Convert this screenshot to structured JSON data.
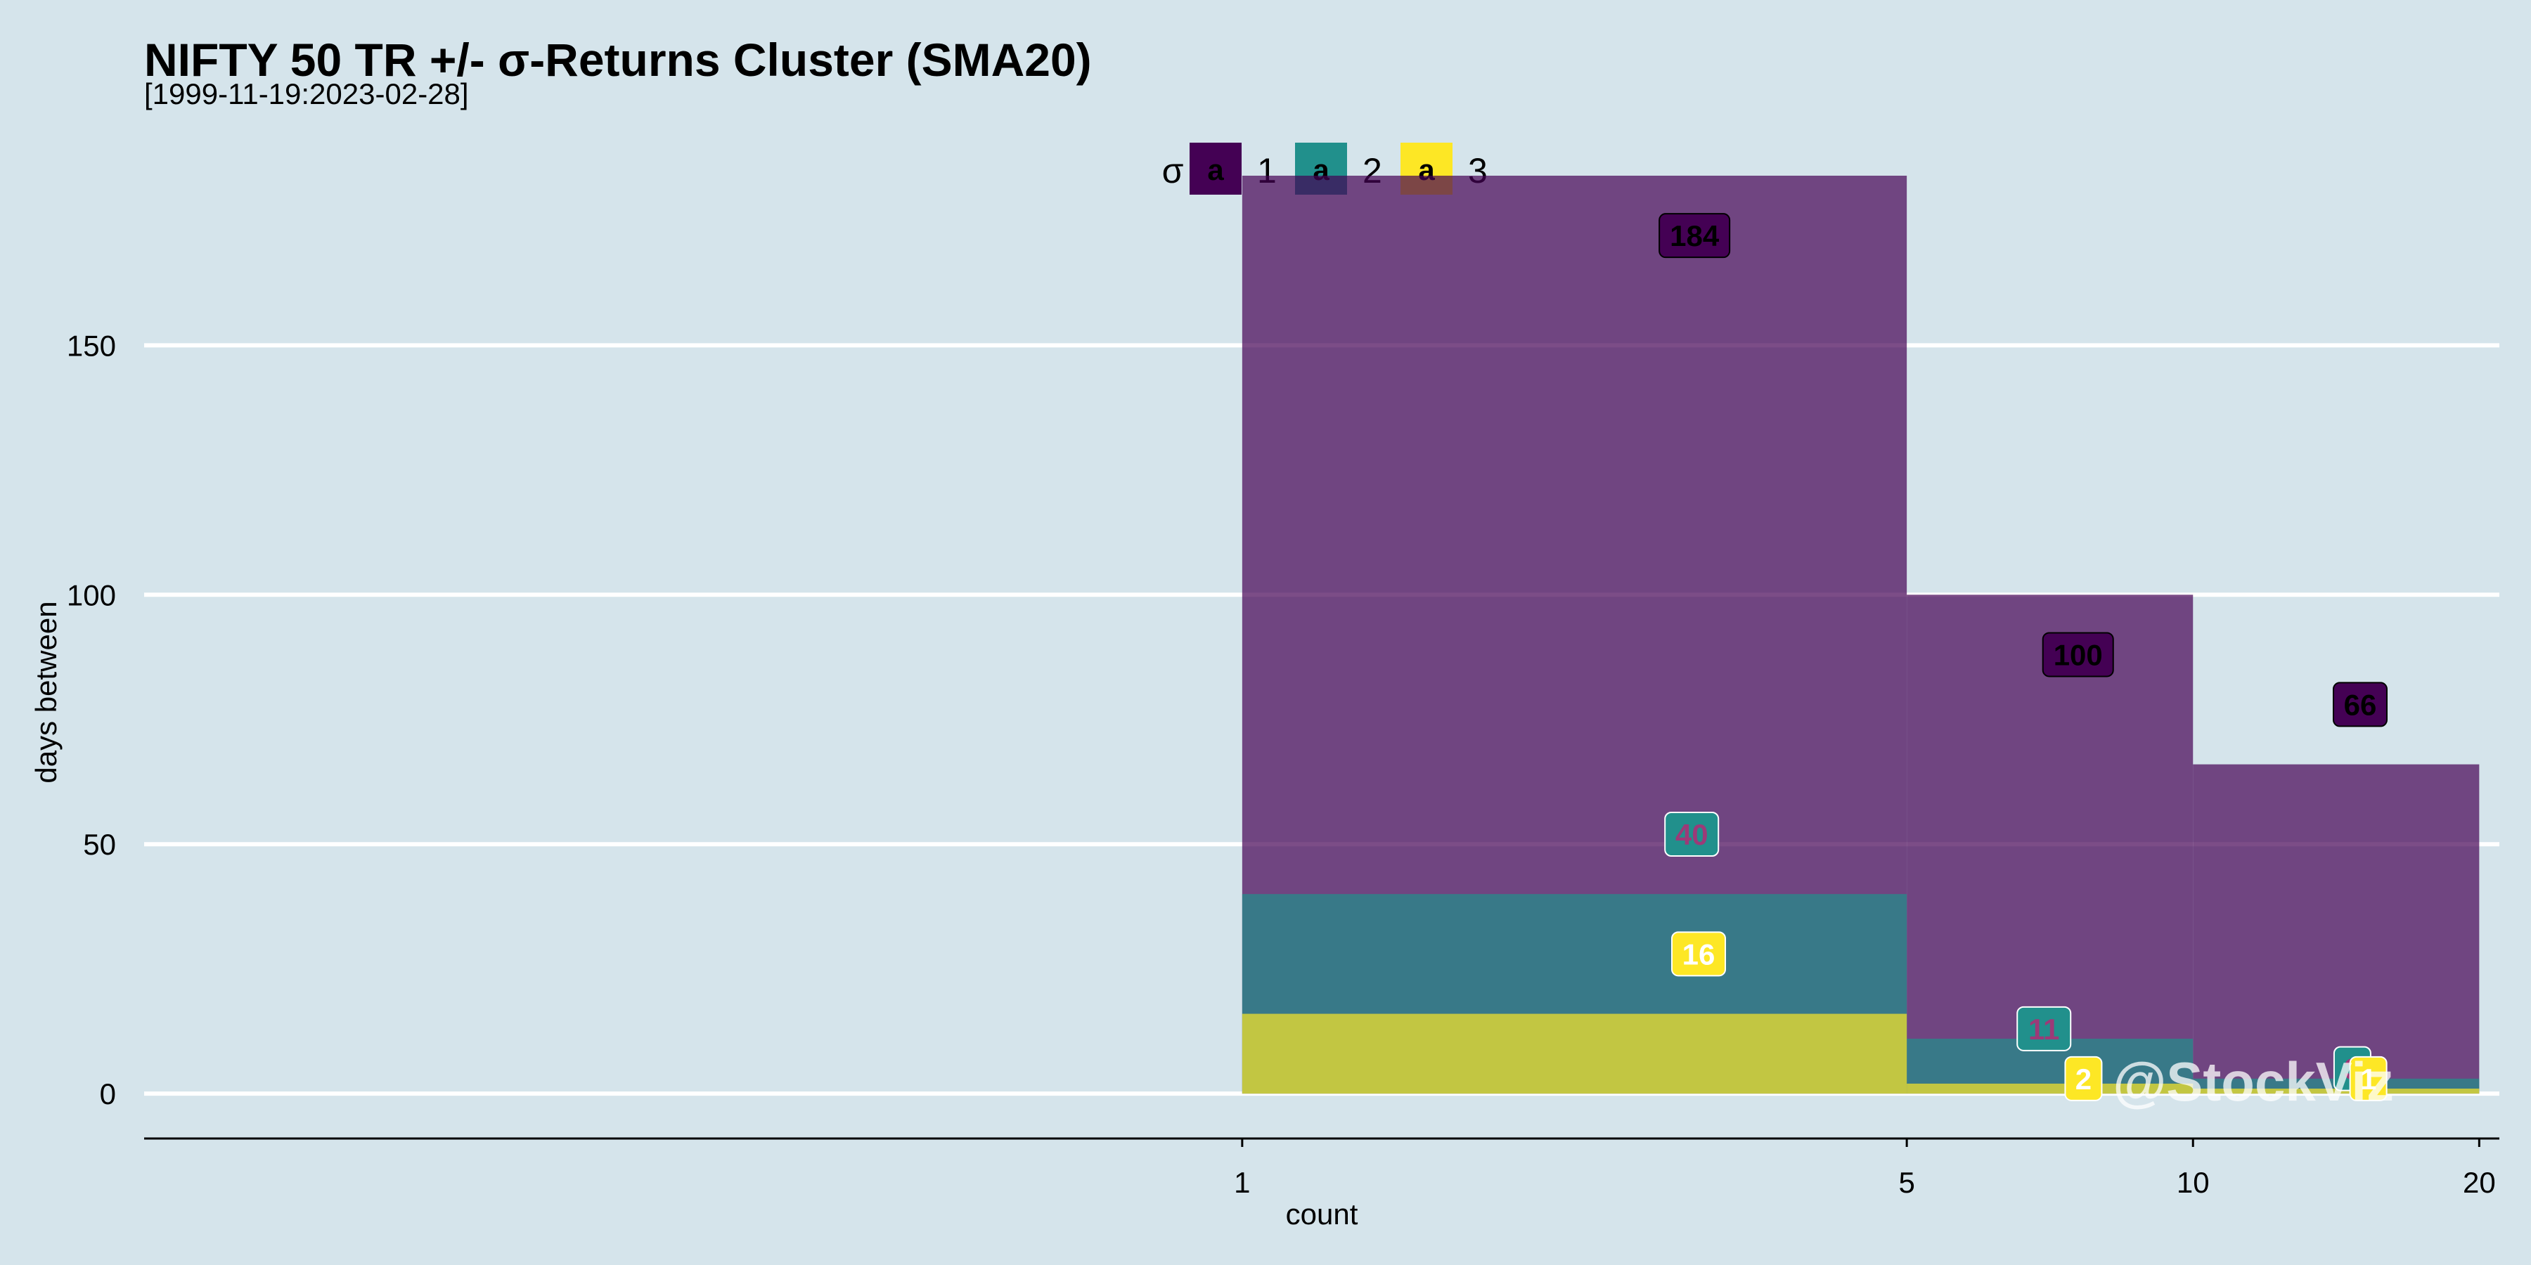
{
  "chart_data": {
    "type": "bar",
    "title": "NIFTY 50 TR +/- σ-Returns Cluster (SMA20)",
    "subtitle": "[1999-11-19:2023-02-28]",
    "xlabel": "count",
    "ylabel": "days between",
    "x_ticks": [
      1,
      5,
      10,
      20
    ],
    "y_ticks": [
      0,
      50,
      100,
      150
    ],
    "xlim": [
      0.07,
      21.0
    ],
    "ylim": [
      -9,
      184
    ],
    "bins": [
      [
        1,
        5
      ],
      [
        5,
        10
      ],
      [
        10,
        20
      ]
    ],
    "legend": {
      "title": "σ",
      "key_glyph": "a",
      "position": "top"
    },
    "series": [
      {
        "name": "1",
        "color": "#440154",
        "fill": "#440154",
        "label_text": "#000000",
        "values": [
          184,
          100,
          66
        ],
        "label_y": [
          172,
          88,
          78
        ],
        "label_x": [
          2.99,
          7.57,
          14.99
        ]
      },
      {
        "name": "2",
        "color": "#21908c",
        "fill": "#21908c",
        "label_text": "#9c3a78",
        "values": [
          40,
          11,
          3
        ],
        "label_y": [
          52,
          13,
          5
        ],
        "label_x": [
          2.97,
          6.97,
          14.71
        ]
      },
      {
        "name": "3",
        "color": "#fde725",
        "fill": "#fde725",
        "label_text": "#ffffff",
        "values": [
          16,
          2,
          1
        ],
        "label_y": [
          28,
          3,
          3
        ],
        "label_x": [
          3.02,
          7.67,
          15.29
        ]
      }
    ],
    "grid": true,
    "watermark": "@StockViz"
  }
}
